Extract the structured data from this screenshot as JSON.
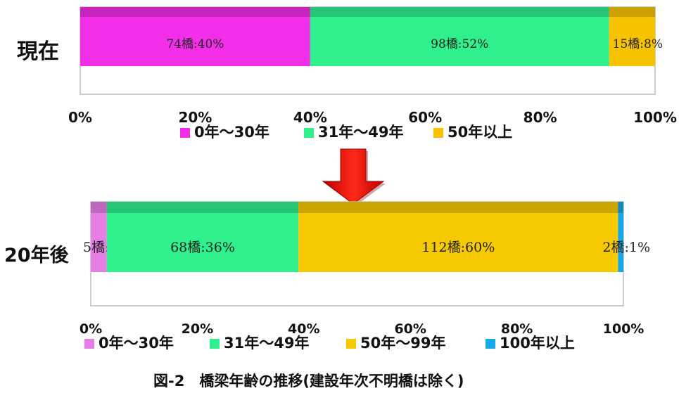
{
  "caption": "図-2　橋梁年齢の推移(建設年次不明橋は除く)",
  "chart_data": [
    {
      "type": "bar",
      "orientation": "horizontal",
      "stacked": true,
      "category_label": "現在",
      "xlim": [
        0,
        100
      ],
      "ticks": [
        "0%",
        "20%",
        "40%",
        "60%",
        "80%",
        "100%"
      ],
      "legend_position": "bottom",
      "series": [
        {
          "name": "0年～30年",
          "value": 40,
          "label": "74橋:40%",
          "color": "#f22ee8"
        },
        {
          "name": "31年～49年",
          "value": 52,
          "label": "98橋:52%",
          "color": "#2ff08c"
        },
        {
          "name": "50年以上",
          "value": 8,
          "label": "15橋:8%",
          "color": "#f7c300"
        }
      ]
    },
    {
      "type": "bar",
      "orientation": "horizontal",
      "stacked": true,
      "category_label": "20年後",
      "xlim": [
        0,
        100
      ],
      "ticks": [
        "0%",
        "20%",
        "40%",
        "60%",
        "80%",
        "100%"
      ],
      "legend_position": "bottom",
      "series": [
        {
          "name": "0年～30年",
          "value": 3,
          "label": "5橋:3%",
          "color": "#e77ee6"
        },
        {
          "name": "31年～49年",
          "value": 36,
          "label": "68橋:36%",
          "color": "#2ff08c"
        },
        {
          "name": "50年～99年",
          "value": 60,
          "label": "112橋:60%",
          "color": "#f7c900"
        },
        {
          "name": "100年以上",
          "value": 1,
          "label": "2橋:1%",
          "color": "#16a8e8"
        }
      ]
    }
  ]
}
